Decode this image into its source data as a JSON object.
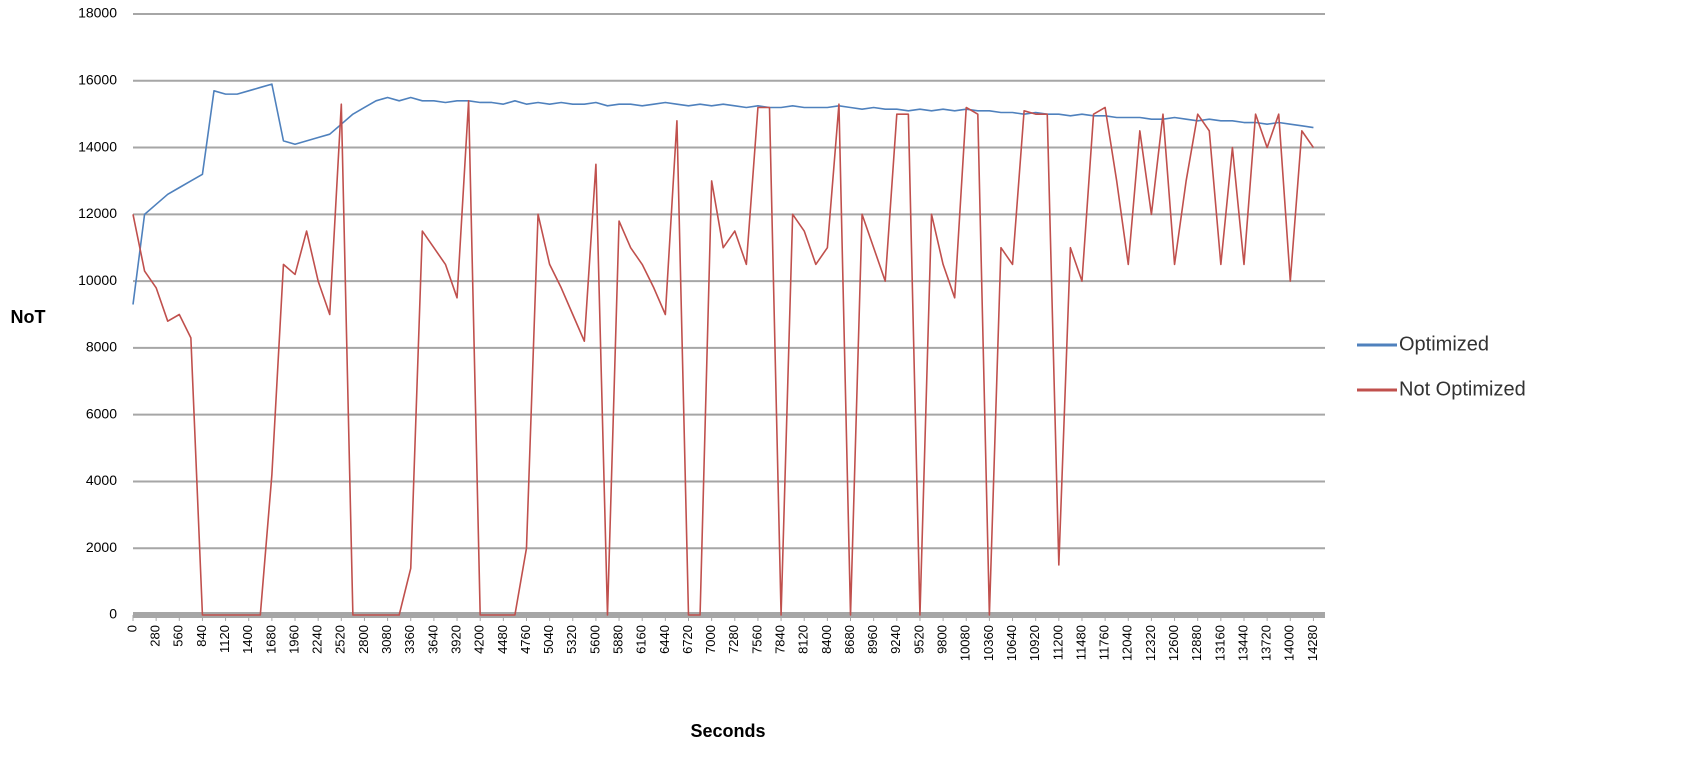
{
  "chart_data": {
    "type": "line",
    "x_label": "Seconds",
    "y_label": "NoT",
    "x": [
      0,
      140,
      280,
      420,
      560,
      700,
      840,
      980,
      1120,
      1260,
      1400,
      1540,
      1680,
      1820,
      1960,
      2100,
      2240,
      2380,
      2520,
      2660,
      2800,
      2940,
      3080,
      3220,
      3360,
      3500,
      3640,
      3780,
      3920,
      4060,
      4200,
      4340,
      4480,
      4620,
      4760,
      4900,
      5040,
      5180,
      5320,
      5460,
      5600,
      5740,
      5880,
      6020,
      6160,
      6300,
      6440,
      6580,
      6720,
      6860,
      7000,
      7140,
      7280,
      7420,
      7560,
      7700,
      7840,
      7980,
      8120,
      8260,
      8400,
      8540,
      8680,
      8820,
      8960,
      9100,
      9240,
      9380,
      9520,
      9660,
      9800,
      9940,
      10080,
      10220,
      10360,
      10500,
      10640,
      10780,
      10920,
      11060,
      11200,
      11340,
      11480,
      11620,
      11760,
      11900,
      12040,
      12180,
      12320,
      12460,
      12600,
      12740,
      12880,
      13020,
      13160,
      13300,
      13440,
      13580,
      13720,
      13860,
      14000,
      14140,
      14280
    ],
    "series": [
      {
        "name": "Optimized",
        "color": "#4f81bd",
        "values": [
          9300,
          12000,
          12300,
          12600,
          12800,
          13000,
          13200,
          15700,
          15600,
          15600,
          15700,
          15800,
          15900,
          14200,
          14100,
          14200,
          14300,
          14400,
          14700,
          15000,
          15200,
          15400,
          15500,
          15400,
          15500,
          15400,
          15400,
          15350,
          15400,
          15400,
          15350,
          15350,
          15300,
          15400,
          15300,
          15350,
          15300,
          15350,
          15300,
          15300,
          15350,
          15250,
          15300,
          15300,
          15250,
          15300,
          15350,
          15300,
          15250,
          15300,
          15250,
          15300,
          15250,
          15200,
          15250,
          15200,
          15200,
          15250,
          15200,
          15200,
          15200,
          15250,
          15200,
          15150,
          15200,
          15150,
          15150,
          15100,
          15150,
          15100,
          15150,
          15100,
          15150,
          15100,
          15100,
          15050,
          15050,
          15000,
          15050,
          15000,
          15000,
          14950,
          15000,
          14950,
          14950,
          14900,
          14900,
          14900,
          14850,
          14850,
          14900,
          14850,
          14800,
          14850,
          14800,
          14800,
          14750,
          14750,
          14700,
          14750,
          14700,
          14650,
          14600
        ]
      },
      {
        "name": "Not Optimized",
        "color": "#c0504d",
        "values": [
          12000,
          10300,
          9800,
          8800,
          9000,
          8300,
          0,
          0,
          0,
          0,
          0,
          0,
          4200,
          10500,
          10200,
          11500,
          10000,
          9000,
          15300,
          0,
          0,
          0,
          0,
          0,
          1400,
          11500,
          11000,
          10500,
          9500,
          15400,
          0,
          0,
          0,
          0,
          2000,
          12000,
          10500,
          9800,
          9000,
          8200,
          13500,
          0,
          11800,
          11000,
          10500,
          9800,
          9000,
          14800,
          0,
          0,
          13000,
          11000,
          11500,
          10500,
          15200,
          15200,
          0,
          12000,
          11500,
          10500,
          11000,
          15300,
          0,
          12000,
          11000,
          10000,
          15000,
          15000,
          0,
          12000,
          10500,
          9500,
          15200,
          15000,
          0,
          11000,
          10500,
          15100,
          15000,
          15000,
          1500,
          11000,
          10000,
          15000,
          15200,
          13000,
          10500,
          14500,
          12000,
          15000,
          10500,
          13000,
          15000,
          14500,
          10500,
          14000,
          10500,
          15000,
          14000,
          15000,
          10000,
          14500,
          14000
        ]
      }
    ],
    "xlim": [
      0,
      14420
    ],
    "xticks": [
      0,
      280,
      560,
      840,
      1120,
      1400,
      1680,
      1960,
      2240,
      2520,
      2800,
      3080,
      3360,
      3640,
      3920,
      4200,
      4480,
      4760,
      5040,
      5320,
      5600,
      5880,
      6160,
      6440,
      6720,
      7000,
      7280,
      7560,
      7840,
      8120,
      8400,
      8680,
      8960,
      9240,
      9520,
      9800,
      10080,
      10360,
      10640,
      10920,
      11200,
      11480,
      11760,
      12040,
      12320,
      12600,
      12880,
      13160,
      13440,
      13720,
      14000,
      14280
    ],
    "ylim": [
      0,
      18000
    ],
    "yticks": [
      0,
      2000,
      4000,
      6000,
      8000,
      10000,
      12000,
      14000,
      16000,
      18000
    ],
    "grid": true,
    "legend": "right"
  }
}
